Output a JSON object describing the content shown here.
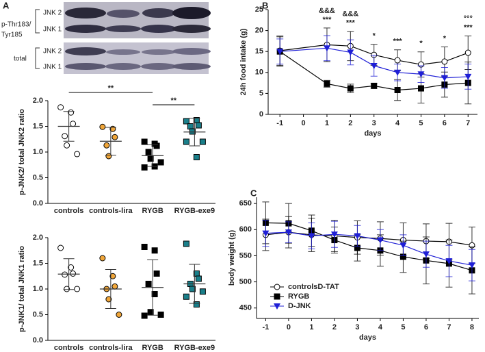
{
  "blot": {
    "panel": "A",
    "phospho_label": [
      "p-Thr183/",
      "Tyr185"
    ],
    "total_label": "total",
    "phospho_bands": [
      "JNK 2",
      "JNK 1"
    ],
    "total_bands": [
      "JNK 2",
      "JNK 1"
    ]
  },
  "chart_data": [
    {
      "type": "dotplot",
      "ylabel": "p-JNK2/ total JNK2 ratio",
      "categories": [
        "controls",
        "controls-lira",
        "RYGB",
        "RYGB-exe9"
      ],
      "points": [
        [
          1.87,
          1.77,
          1.55,
          1.31,
          1.13,
          0.96
        ],
        [
          1.49,
          1.45,
          1.29,
          1.13,
          0.92
        ],
        [
          1.2,
          1.16,
          1.12,
          1.0,
          0.87,
          0.8,
          0.7,
          0.72
        ],
        [
          1.6,
          1.62,
          1.52,
          1.5,
          1.4,
          1.2,
          1.2,
          0.9
        ]
      ],
      "means": [
        1.5,
        1.21,
        0.93,
        1.39
      ],
      "sd": [
        0.29,
        0.27,
        0.21,
        0.27
      ],
      "colors": [
        "#ffffff",
        "#f0a63a",
        "#000000",
        "#1a7f8a"
      ],
      "markers": [
        "circle",
        "circle",
        "square",
        "square"
      ],
      "ylim": [
        0,
        2
      ],
      "yticks": [
        {
          "value": 0,
          "label": "0.0"
        },
        {
          "value": 0.5,
          "label": "0.5"
        },
        {
          "value": 1,
          "label": "1.0"
        },
        {
          "value": 1.5,
          "label": "1.5"
        },
        {
          "value": 2,
          "label": "2.0"
        }
      ],
      "significance": [
        {
          "from": "controls",
          "to": "RYGB",
          "text": "**"
        },
        {
          "from": "RYGB",
          "to": "RYGB-exe9",
          "text": "**"
        }
      ]
    },
    {
      "type": "dotplot",
      "ylabel": "p-JNK1/ total JNK1 ratio",
      "categories": [
        "controls",
        "controls-lira",
        "RYGB",
        "RYGB-exe9"
      ],
      "points": [
        [
          1.8,
          1.42,
          1.3,
          1.28,
          1.0,
          1.0
        ],
        [
          1.6,
          1.25,
          1.05,
          1.0,
          0.8,
          0.5
        ],
        [
          1.82,
          1.75,
          1.3,
          1.1,
          0.55,
          0.5,
          0.48,
          0.9
        ],
        [
          1.88,
          1.3,
          1.2,
          1.1,
          1.0,
          0.95,
          0.85,
          0.7
        ]
      ],
      "means": [
        1.29,
        1.0,
        1.03,
        1.1
      ],
      "sd": [
        0.3,
        0.38,
        0.54,
        0.38
      ],
      "colors": [
        "#ffffff",
        "#f0a63a",
        "#000000",
        "#1a7f8a"
      ],
      "markers": [
        "circle",
        "circle",
        "square",
        "square"
      ],
      "ylim": [
        0,
        2
      ],
      "yticks": [
        {
          "value": 0,
          "label": "0.0"
        },
        {
          "value": 0.5,
          "label": "0.5"
        },
        {
          "value": 1,
          "label": "1.0"
        },
        {
          "value": 1.5,
          "label": "1.5"
        },
        {
          "value": 2,
          "label": "2.0"
        }
      ],
      "significance": []
    },
    {
      "type": "line",
      "panel": "B",
      "ylabel": "24h food intake (g)",
      "xlabel": "days",
      "x": [
        -1,
        1,
        2,
        3,
        4,
        5,
        6,
        7
      ],
      "series": [
        {
          "name": "controls",
          "color": "#000000",
          "marker": "circle-open",
          "values": [
            15.2,
            16.6,
            16.3,
            14.2,
            12.9,
            11.9,
            12.6,
            14.7
          ],
          "errors": [
            3.5,
            4,
            3.5,
            2.5,
            2.5,
            3,
            3.5,
            4
          ]
        },
        {
          "name": "RYGB",
          "color": "#000000",
          "marker": "square",
          "values": [
            15.0,
            7.3,
            6.2,
            6.8,
            5.8,
            6.2,
            7.1,
            7.5
          ],
          "errors": [
            3.5,
            0.8,
            1,
            0.5,
            2.5,
            3.5,
            3,
            5
          ]
        },
        {
          "name": "D-JNK",
          "color": "#1f1fd6",
          "marker": "triangle-down",
          "values": [
            15.0,
            15.8,
            14.8,
            11.6,
            10.0,
            9.6,
            8.7,
            9.0
          ],
          "errors": [
            3,
            3,
            3,
            2.5,
            2,
            2,
            2.5,
            3
          ]
        }
      ],
      "xlim": [
        -1.5,
        7.4
      ],
      "xticks": [
        -1,
        0,
        1,
        2,
        3,
        4,
        5,
        6,
        7
      ],
      "ylim": [
        0,
        25
      ],
      "yticks": [
        0,
        5,
        10,
        15,
        20,
        25
      ],
      "annotations": [
        {
          "x": 1,
          "lines": [
            "&&&",
            "***"
          ]
        },
        {
          "x": 2,
          "lines": [
            "&&&",
            "***"
          ]
        },
        {
          "x": 3,
          "lines": [
            "*"
          ]
        },
        {
          "x": 4,
          "lines": [
            "***"
          ]
        },
        {
          "x": 5,
          "lines": [
            "*"
          ]
        },
        {
          "x": 6,
          "lines": [
            "*"
          ]
        },
        {
          "x": 7,
          "lines": [
            "°°°",
            "***"
          ]
        }
      ]
    },
    {
      "type": "line",
      "panel": "C",
      "ylabel": "body weight (g)",
      "xlabel": "days",
      "x": [
        -1,
        0,
        1,
        2,
        3,
        4,
        5,
        6,
        7,
        8
      ],
      "series": [
        {
          "name": "controlsD-TAT",
          "color": "#000000",
          "marker": "circle-open",
          "values": [
            590,
            595,
            590,
            588,
            585,
            583,
            580,
            578,
            577,
            570
          ],
          "errors": [
            30,
            30,
            32,
            30,
            32,
            32,
            33,
            33,
            35,
            35
          ]
        },
        {
          "name": "RYGB",
          "color": "#000000",
          "marker": "square",
          "values": [
            613,
            612,
            598,
            580,
            565,
            560,
            548,
            541,
            535,
            522
          ],
          "errors": [
            40,
            38,
            30,
            25,
            25,
            30,
            30,
            45,
            45,
            45
          ]
        },
        {
          "name": "D-JNK",
          "color": "#1f1fd6",
          "marker": "triangle-down",
          "values": [
            593,
            595,
            588,
            591,
            588,
            580,
            570,
            553,
            540,
            532
          ],
          "errors": [
            25,
            20,
            25,
            25,
            20,
            20,
            20,
            25,
            30,
            30
          ]
        }
      ],
      "xlim": [
        -1.4,
        8.3
      ],
      "xticks": [
        -1,
        0,
        1,
        2,
        3,
        4,
        5,
        6,
        7,
        8
      ],
      "ylim": [
        430,
        662
      ],
      "yticks": [
        450,
        500,
        550,
        600,
        650
      ],
      "legend": "lower-left"
    }
  ]
}
